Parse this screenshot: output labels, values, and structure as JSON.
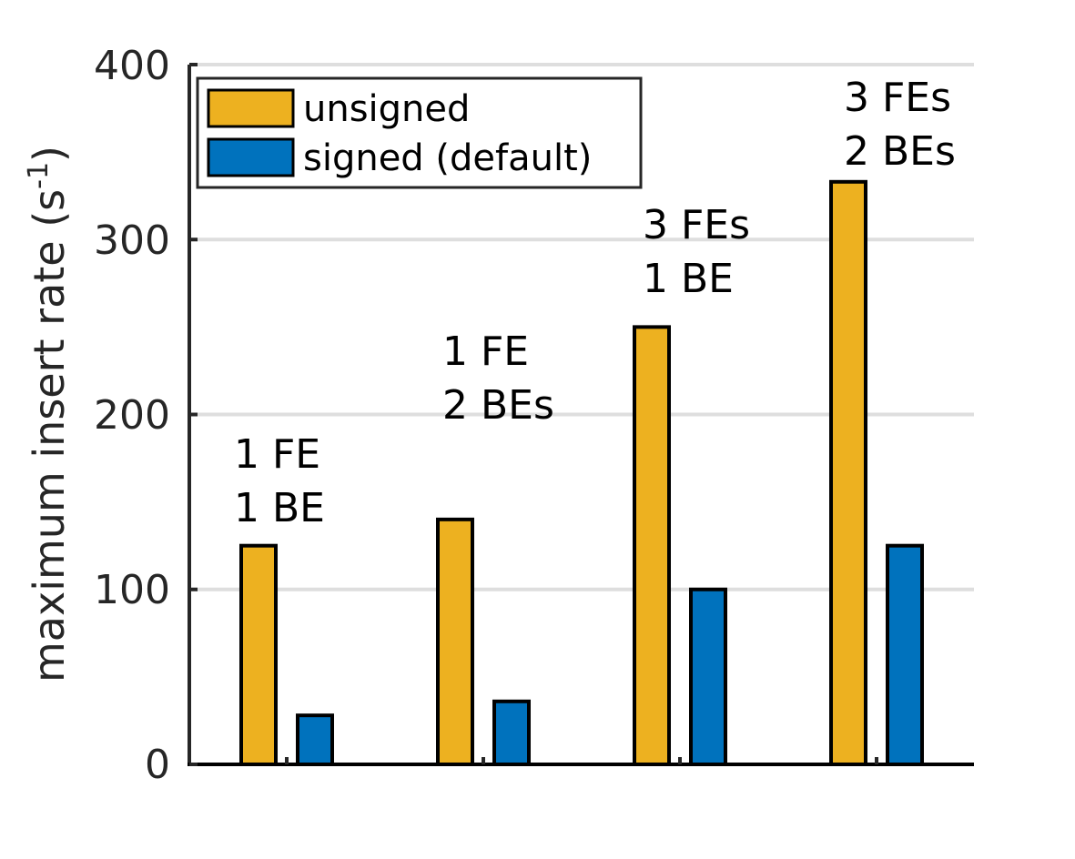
{
  "chart_data": {
    "type": "bar",
    "title": "",
    "xlabel": "",
    "ylabel": "maximum insert rate (s",
    "ylabel_unit_superscript": "-1",
    "ylabel_close": ")",
    "ylim": [
      0,
      400
    ],
    "yticks": [
      "0",
      "100",
      "200",
      "300",
      "400"
    ],
    "grid": "horizontal",
    "legend_position": "top-left",
    "categories": [
      "1 FE\n1 BE",
      "1 FE\n2 BEs",
      "3 FEs\n1 BE",
      "3 FEs\n2 BEs"
    ],
    "annotations": [
      {
        "line1": "1 FE",
        "line2": "1 BE"
      },
      {
        "line1": "1 FE",
        "line2": "2 BEs"
      },
      {
        "line1": "3 FEs",
        "line2": "1 BE"
      },
      {
        "line1": "3 FEs",
        "line2": "2 BEs"
      }
    ],
    "series": [
      {
        "name": "unsigned",
        "color": "#EDB120",
        "values": [
          125,
          140,
          250,
          333
        ]
      },
      {
        "name": "signed (default)",
        "color": "#0072BD",
        "values": [
          28,
          36,
          100,
          125
        ]
      }
    ]
  }
}
